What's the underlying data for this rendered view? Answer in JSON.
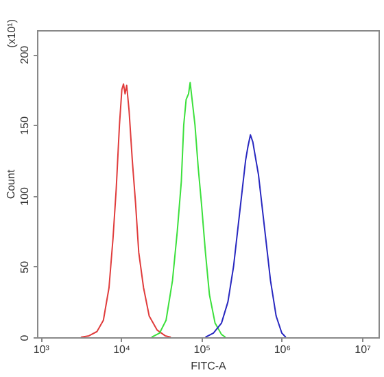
{
  "chart_data": {
    "type": "line",
    "xlabel": "FITC-A",
    "ylabel": "Count",
    "annotations": [
      "(x10¹)"
    ],
    "log": "x",
    "grid": false,
    "legend": false,
    "marker": "none",
    "line_style": "solid",
    "xlim": [
      900,
      16000000
    ],
    "xticks": [
      {
        "value": 1000,
        "label": "10³"
      },
      {
        "value": 10000,
        "label": "10⁴"
      },
      {
        "value": 100000,
        "label": "10⁵"
      },
      {
        "value": 1000000,
        "label": "10⁶"
      },
      {
        "value": 10000000,
        "label": "10⁷"
      }
    ],
    "ylim": [
      0,
      217
    ],
    "yticks": [
      0,
      50,
      100,
      150,
      200
    ],
    "series": [
      {
        "color": "#e03c3c",
        "x": [
          3162,
          3981,
          5012,
          6026,
          7079,
          7943,
          8710,
          9550,
          10230,
          10720,
          11220,
          11750,
          12590,
          13800,
          15140,
          16600,
          19050,
          22390,
          28180,
          35480,
          41690
        ],
        "values": [
          0,
          1,
          4,
          12,
          35,
          70,
          105,
          150,
          175,
          179,
          172,
          178,
          160,
          125,
          95,
          60,
          35,
          15,
          5,
          1,
          0
        ]
      },
      {
        "color": "#3ce03c",
        "x": [
          23990,
          30200,
          36310,
          43650,
          50120,
          56230,
          60260,
          64570,
          69180,
          72440,
          77620,
          83180,
          91200,
          100000,
          112200,
          125900,
          147900,
          177800,
          199500
        ],
        "values": [
          0,
          3,
          12,
          40,
          75,
          110,
          150,
          168,
          172,
          180,
          165,
          150,
          120,
          95,
          60,
          30,
          10,
          2,
          0
        ]
      },
      {
        "color": "#2828c0",
        "x": [
          112200,
          141300,
          177800,
          213800,
          251200,
          288400,
          323600,
          354800,
          380200,
          407400,
          436500,
          467700,
          512900,
          562300,
          631000,
          724400,
          851100,
          1000000,
          1122000
        ],
        "values": [
          0,
          3,
          10,
          25,
          50,
          80,
          105,
          125,
          135,
          143,
          138,
          128,
          115,
          95,
          70,
          40,
          15,
          3,
          0
        ]
      }
    ]
  }
}
